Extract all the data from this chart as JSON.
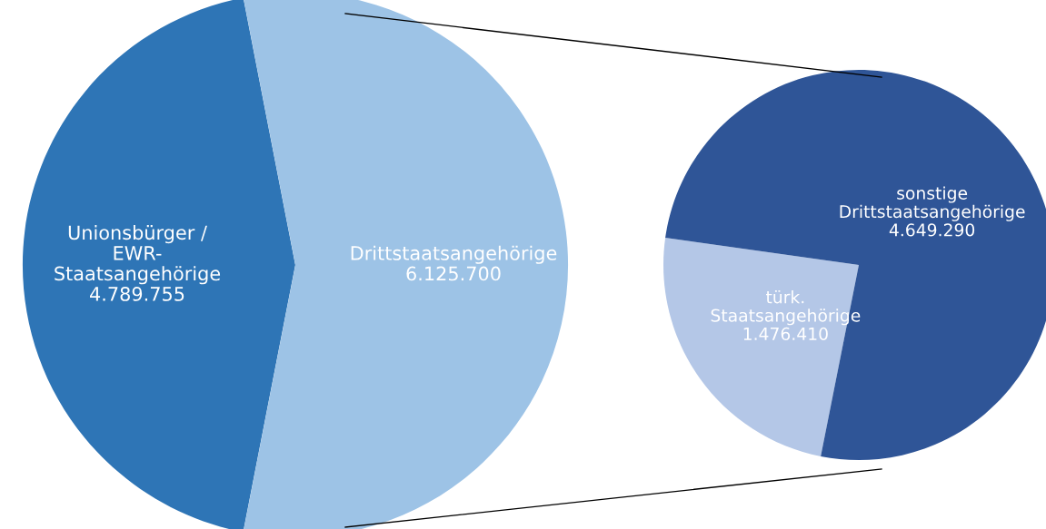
{
  "chart_data": [
    {
      "type": "pie",
      "categories": [
        "Unionsbürger /\nEWR-\nStaatsangehörige",
        "Drittstaatsangehörige"
      ],
      "values": [
        4789755,
        6125700
      ],
      "value_labels": [
        "4.789.755",
        "6.125.700"
      ],
      "colors": [
        "#2e75b6",
        "#9dc3e6"
      ]
    },
    {
      "type": "pie",
      "categories": [
        "türk.\nStaatsangehörige",
        "sonstige\nDrittstaatsangehörige"
      ],
      "values": [
        1476410,
        4649290
      ],
      "value_labels": [
        "1.476.410",
        "4.649.290"
      ],
      "colors": [
        "#b4c7e7",
        "#2f5597"
      ]
    }
  ]
}
